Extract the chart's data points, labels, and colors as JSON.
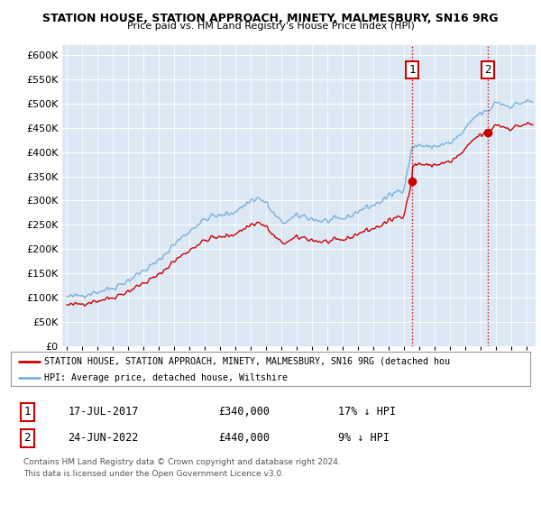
{
  "title": "STATION HOUSE, STATION APPROACH, MINETY, MALMESBURY, SN16 9RG",
  "subtitle": "Price paid vs. HM Land Registry's House Price Index (HPI)",
  "ylim": [
    0,
    620000
  ],
  "yticks": [
    0,
    50000,
    100000,
    150000,
    200000,
    250000,
    300000,
    350000,
    400000,
    450000,
    500000,
    550000,
    600000
  ],
  "bg_color": "#dce9f5",
  "hpi_color": "#7ab0d8",
  "price_color": "#cc0000",
  "sale1_year": 2017.54,
  "sale1_price": 340000,
  "sale2_year": 2022.48,
  "sale2_price": 440000,
  "legend_line1": "STATION HOUSE, STATION APPROACH, MINETY, MALMESBURY, SN16 9RG (detached hou",
  "legend_line2": "HPI: Average price, detached house, Wiltshire",
  "annotation1_date": "17-JUL-2017",
  "annotation1_price": "£340,000",
  "annotation1_hpi": "17% ↓ HPI",
  "annotation2_date": "24-JUN-2022",
  "annotation2_price": "£440,000",
  "annotation2_hpi": "9% ↓ HPI",
  "footer": "Contains HM Land Registry data © Crown copyright and database right 2024.\nThis data is licensed under the Open Government Licence v3.0."
}
